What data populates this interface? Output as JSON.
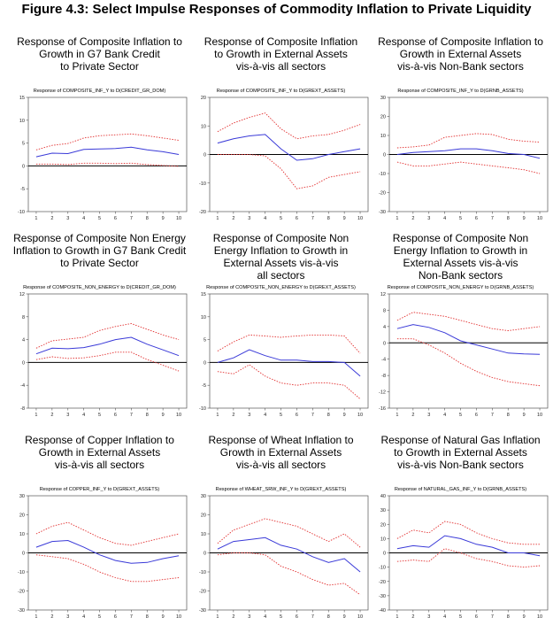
{
  "figure_title": "Figure 4.3: Select Impulse Responses of Commodity Inflation to Private Liquidity",
  "colors": {
    "response": "#3a3ad8",
    "band": "#e23030",
    "zero": "#000000",
    "axis": "#555555"
  },
  "chart_data": [
    {
      "type": "line",
      "caption": [
        "Response of Composite Inflation to",
        "Growth in G7 Bank Credit",
        "to Private Sector"
      ],
      "title": "Response of COMPOSITE_INF_Y to D(CREDIT_GR_DOM)",
      "x": [
        1,
        2,
        3,
        4,
        5,
        6,
        7,
        8,
        9,
        10
      ],
      "ylim": [
        -10,
        15
      ],
      "yticks": [
        -10,
        -5,
        0,
        5,
        10,
        15
      ],
      "series": [
        {
          "name": "response",
          "values": [
            2.0,
            2.8,
            2.7,
            3.6,
            3.7,
            3.8,
            4.1,
            3.5,
            3.1,
            2.5
          ]
        },
        {
          "name": "upper",
          "values": [
            3.5,
            4.5,
            4.9,
            6.1,
            6.6,
            6.8,
            7.0,
            6.6,
            6.1,
            5.6
          ]
        },
        {
          "name": "lower",
          "values": [
            0.4,
            0.4,
            0.3,
            0.6,
            0.6,
            0.5,
            0.6,
            0.3,
            0.1,
            -0.1
          ]
        }
      ]
    },
    {
      "type": "line",
      "caption": [
        "Response of Composite Inflation",
        "to Growth in External Assets",
        "vis-à-vis all sectors"
      ],
      "title": "Response of COMPOSITE_INF_Y to D(GREXT_ASSETS)",
      "x": [
        1,
        2,
        3,
        4,
        5,
        6,
        7,
        8,
        9,
        10
      ],
      "ylim": [
        -20,
        20
      ],
      "yticks": [
        -20,
        -10,
        0,
        10,
        20
      ],
      "series": [
        {
          "name": "response",
          "values": [
            4,
            5.5,
            6.5,
            7,
            2,
            -2,
            -1.5,
            0,
            1,
            2
          ]
        },
        {
          "name": "upper",
          "values": [
            8,
            11,
            13,
            14.5,
            9,
            5.5,
            6.5,
            7,
            8.5,
            10.5
          ]
        },
        {
          "name": "lower",
          "values": [
            0,
            0,
            0,
            -0.5,
            -5,
            -12,
            -11,
            -8,
            -7,
            -6
          ]
        }
      ]
    },
    {
      "type": "line",
      "caption": [
        "Response of Composite Inflation to",
        "Growth in External Assets",
        "vis-à-vis Non-Bank sectors"
      ],
      "title": "Response of COMPOSITE_INF_Y to D(GRNB_ASSETS)",
      "x": [
        1,
        2,
        3,
        4,
        5,
        6,
        7,
        8,
        9,
        10
      ],
      "ylim": [
        -30,
        30
      ],
      "yticks": [
        -30,
        -20,
        -10,
        0,
        10,
        20,
        30
      ],
      "series": [
        {
          "name": "response",
          "values": [
            0,
            1,
            1.5,
            2,
            3,
            3,
            2,
            0.5,
            0,
            -2
          ]
        },
        {
          "name": "upper",
          "values": [
            3.5,
            4,
            5,
            9,
            10,
            11,
            10.5,
            8,
            7,
            6.5
          ]
        },
        {
          "name": "lower",
          "values": [
            -4,
            -6,
            -6,
            -5,
            -4,
            -5,
            -6,
            -7,
            -8,
            -10
          ]
        }
      ]
    },
    {
      "type": "line",
      "caption": [
        "Response of Composite Non Energy",
        "Inflation to Growth in G7 Bank Credit",
        "to Private Sector"
      ],
      "title": "Response of COMPOSITE_NON_ENERGY to D(CREDIT_GR_DOM)",
      "x": [
        1,
        2,
        3,
        4,
        5,
        6,
        7,
        8,
        9,
        10
      ],
      "ylim": [
        -8,
        12
      ],
      "yticks": [
        -8,
        -4,
        0,
        4,
        8,
        12
      ],
      "series": [
        {
          "name": "response",
          "values": [
            1.5,
            2.5,
            2.4,
            2.6,
            3.2,
            4.0,
            4.4,
            3.2,
            2.2,
            1.2
          ]
        },
        {
          "name": "upper",
          "values": [
            2.5,
            3.8,
            4.1,
            4.4,
            5.6,
            6.3,
            6.8,
            5.8,
            4.8,
            4.0
          ]
        },
        {
          "name": "lower",
          "values": [
            0.5,
            1.0,
            0.7,
            0.8,
            1.2,
            1.8,
            1.8,
            0.5,
            -0.5,
            -1.5
          ]
        }
      ]
    },
    {
      "type": "line",
      "caption": [
        "Response of Composite Non",
        "Energy Inflation to Growth in",
        "External Assets vis-à-vis",
        "all sectors"
      ],
      "title": "Response of COMPOSITE_NON_ENERGY to D(GREXT_ASSETS)",
      "x": [
        1,
        2,
        3,
        4,
        5,
        6,
        7,
        8,
        9,
        10
      ],
      "ylim": [
        -10,
        15
      ],
      "yticks": [
        -10,
        -5,
        0,
        5,
        10,
        15
      ],
      "series": [
        {
          "name": "response",
          "values": [
            0,
            1,
            2.8,
            1.5,
            0.5,
            0.5,
            0.2,
            0.2,
            0,
            -3
          ]
        },
        {
          "name": "upper",
          "values": [
            2.5,
            4.5,
            6,
            5.8,
            5.5,
            5.8,
            6,
            6,
            5.8,
            2
          ]
        },
        {
          "name": "lower",
          "values": [
            -2,
            -2.5,
            -0.5,
            -3,
            -4.5,
            -5,
            -4.5,
            -4.5,
            -5,
            -8
          ]
        }
      ]
    },
    {
      "type": "line",
      "caption": [
        "Response of Composite Non",
        "Energy Inflation to Growth in",
        "External Assets vis-à-vis",
        "Non-Bank sectors"
      ],
      "title": "Response of COMPOSITE_NON_ENERGY to D(GRNB_ASSETS)",
      "x": [
        1,
        2,
        3,
        4,
        5,
        6,
        7,
        8,
        9,
        10
      ],
      "ylim": [
        -16,
        12
      ],
      "yticks": [
        -16,
        -12,
        -8,
        -4,
        0,
        4,
        8,
        12
      ],
      "series": [
        {
          "name": "response",
          "values": [
            3.5,
            4.5,
            3.8,
            2.5,
            0.5,
            -0.5,
            -1.5,
            -2.5,
            -2.7,
            -2.8
          ]
        },
        {
          "name": "upper",
          "values": [
            5.5,
            7.5,
            7,
            6.5,
            5.5,
            4.5,
            3.5,
            3,
            3.5,
            4
          ]
        },
        {
          "name": "lower",
          "values": [
            1,
            1,
            -0.5,
            -2.5,
            -5,
            -7,
            -8.5,
            -9.5,
            -10,
            -10.5
          ]
        }
      ]
    },
    {
      "type": "line",
      "caption": [
        "Response of Copper Inflation to",
        "Growth in External Assets",
        "vis-à-vis all sectors"
      ],
      "title": "Response of COPPER_INF_Y to D(GREXT_ASSETS)",
      "x": [
        1,
        2,
        3,
        4,
        5,
        6,
        7,
        8,
        9,
        10
      ],
      "ylim": [
        -30,
        30
      ],
      "yticks": [
        -30,
        -20,
        -10,
        0,
        10,
        20,
        30
      ],
      "series": [
        {
          "name": "response",
          "values": [
            3,
            6,
            6.5,
            3,
            -1,
            -4,
            -5.5,
            -5,
            -3,
            -1.5
          ]
        },
        {
          "name": "upper",
          "values": [
            10,
            14,
            16,
            12,
            8,
            5,
            4,
            6,
            8,
            10
          ]
        },
        {
          "name": "lower",
          "values": [
            -1,
            -2,
            -3,
            -6,
            -10,
            -13,
            -15,
            -15,
            -14,
            -13
          ]
        }
      ]
    },
    {
      "type": "line",
      "caption": [
        "Response of Wheat Inflation to",
        "Growth in External Assets",
        "vis-à-vis all sectors"
      ],
      "title": "Response of WHEAT_SRW_INF_Y to D(GREXT_ASSETS)",
      "x": [
        1,
        2,
        3,
        4,
        5,
        6,
        7,
        8,
        9,
        10
      ],
      "ylim": [
        -30,
        30
      ],
      "yticks": [
        -30,
        -20,
        -10,
        0,
        10,
        20,
        30
      ],
      "series": [
        {
          "name": "response",
          "values": [
            2,
            6,
            7,
            8,
            4,
            2,
            -2,
            -5,
            -3,
            -10
          ]
        },
        {
          "name": "upper",
          "values": [
            5,
            12,
            15,
            18,
            16,
            14,
            10,
            6,
            10,
            3
          ]
        },
        {
          "name": "lower",
          "values": [
            -1,
            0,
            0,
            -1,
            -7,
            -10,
            -14,
            -17,
            -16,
            -22
          ]
        }
      ]
    },
    {
      "type": "line",
      "caption": [
        "Response of Natural Gas Inflation",
        "to Growth in External Assets",
        "vis-à-vis Non-Bank sectors"
      ],
      "title": "Response of NATURAL_GAS_INF_Y to D(GRNB_ASSETS)",
      "x": [
        1,
        2,
        3,
        4,
        5,
        6,
        7,
        8,
        9,
        10
      ],
      "ylim": [
        -40,
        40
      ],
      "yticks": [
        -40,
        -30,
        -20,
        -10,
        0,
        10,
        20,
        30,
        40
      ],
      "series": [
        {
          "name": "response",
          "values": [
            3,
            5,
            4,
            12,
            10,
            6,
            4,
            0,
            0,
            -2
          ]
        },
        {
          "name": "upper",
          "values": [
            10,
            16,
            14,
            22,
            20,
            14,
            10,
            7,
            6,
            6
          ]
        },
        {
          "name": "lower",
          "values": [
            -6,
            -5,
            -6,
            3,
            0,
            -4,
            -6,
            -9,
            -10,
            -9
          ]
        }
      ]
    }
  ]
}
